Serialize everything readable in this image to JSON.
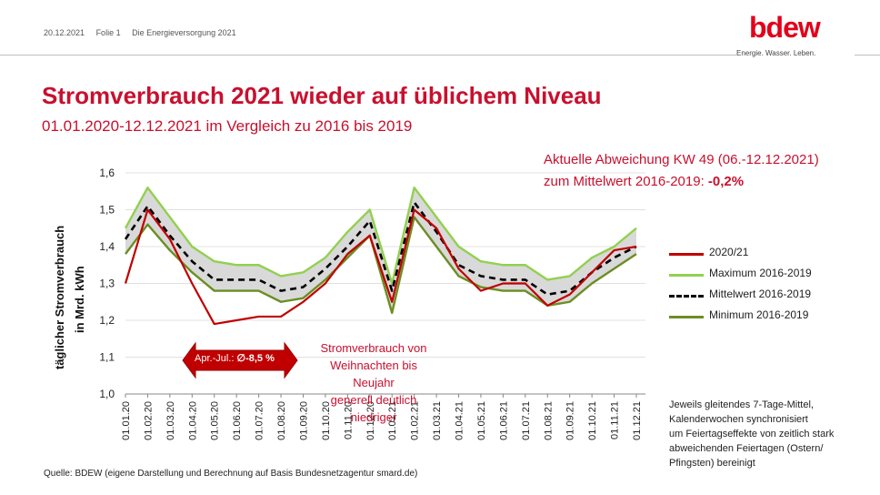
{
  "header": {
    "date": "20.12.2021",
    "slide": "Folie 1",
    "topic": "Die Energieversorgung 2021"
  },
  "logo": {
    "text": "bdew",
    "tagline": "Energie. Wasser. Leben."
  },
  "title": "Stromverbrauch 2021 wieder auf üblichem Niveau",
  "subtitle": "01.01.2020-12.12.2021 im Vergleich zu 2016 bis 2019",
  "deviation": {
    "line1": "Aktuelle Abweichung KW 49 (06.-12.12.2021)",
    "line2_prefix": "zum Mittelwert 2016-2019: ",
    "value": "-0,2%"
  },
  "annotation": {
    "line1": "Stromverbrauch  von",
    "line2": "Weihnachten bis Neujahr",
    "line3": "generell deutlich niedriger"
  },
  "arrow_label": {
    "prefix": "Apr.-Jul.: ",
    "symbol": "∅",
    "value": "-8,5 %"
  },
  "note": {
    "line1": "Jeweils gleitendes 7-Tage-Mittel,",
    "line2": "Kalenderwochen synchronisiert",
    "line3": "um Feiertagseffekte von zeitlich stark",
    "line4": "abweichenden Feiertagen (Ostern/",
    "line5": "Pfingsten) bereinigt"
  },
  "source": "Quelle: BDEW (eigene Darstellung und Berechnung auf Basis Bundesnetzagentur smard.de)",
  "colors": {
    "red": "#c00000",
    "brand": "#c8102e",
    "light_green": "#92d050",
    "dark_green": "#6b8e23",
    "black": "#000000",
    "band": "#d9d9d9"
  },
  "chart_data": {
    "type": "line",
    "ylabel_line1": "täglicher Stromverbrauch",
    "ylabel_line2": "in Mrd. kWh",
    "ylim": [
      1.0,
      1.6
    ],
    "yticks": [
      "1,0",
      "1,1",
      "1,2",
      "1,3",
      "1,4",
      "1,5",
      "1,6"
    ],
    "x": [
      "01.01.20",
      "01.02.20",
      "01.03.20",
      "01.04.20",
      "01.05.20",
      "01.06.20",
      "01.07.20",
      "01.08.20",
      "01.09.20",
      "01.10.20",
      "01.11.20",
      "01.12.20",
      "01.01.21",
      "01.02.21",
      "01.03.21",
      "01.04.21",
      "01.05.21",
      "01.06.21",
      "01.07.21",
      "01.08.21",
      "01.09.21",
      "01.10.21",
      "01.11.21",
      "01.12.21"
    ],
    "legend_position": "right",
    "series": [
      {
        "name": "2020/21",
        "style": "solid-red",
        "values": [
          1.3,
          1.5,
          1.42,
          1.3,
          1.19,
          1.2,
          1.21,
          1.21,
          1.25,
          1.3,
          1.38,
          1.43,
          1.25,
          1.5,
          1.45,
          1.34,
          1.28,
          1.3,
          1.3,
          1.24,
          1.27,
          1.33,
          1.39,
          1.4
        ]
      },
      {
        "name": "Maximum 2016-2019",
        "style": "solid-lightgreen",
        "values": [
          1.45,
          1.56,
          1.48,
          1.4,
          1.36,
          1.35,
          1.35,
          1.32,
          1.33,
          1.37,
          1.44,
          1.5,
          1.3,
          1.56,
          1.48,
          1.4,
          1.36,
          1.35,
          1.35,
          1.31,
          1.32,
          1.37,
          1.4,
          1.45
        ]
      },
      {
        "name": "Mittelwert 2016-2019",
        "style": "dashed-black",
        "values": [
          1.42,
          1.51,
          1.43,
          1.36,
          1.31,
          1.31,
          1.31,
          1.28,
          1.29,
          1.34,
          1.4,
          1.47,
          1.28,
          1.52,
          1.44,
          1.35,
          1.32,
          1.31,
          1.31,
          1.27,
          1.28,
          1.33,
          1.37,
          1.4
        ]
      },
      {
        "name": "Minimum 2016-2019",
        "style": "solid-darkgreen",
        "values": [
          1.38,
          1.46,
          1.39,
          1.33,
          1.28,
          1.28,
          1.28,
          1.25,
          1.26,
          1.31,
          1.37,
          1.43,
          1.22,
          1.48,
          1.4,
          1.32,
          1.29,
          1.28,
          1.28,
          1.24,
          1.25,
          1.3,
          1.34,
          1.38
        ]
      }
    ]
  }
}
